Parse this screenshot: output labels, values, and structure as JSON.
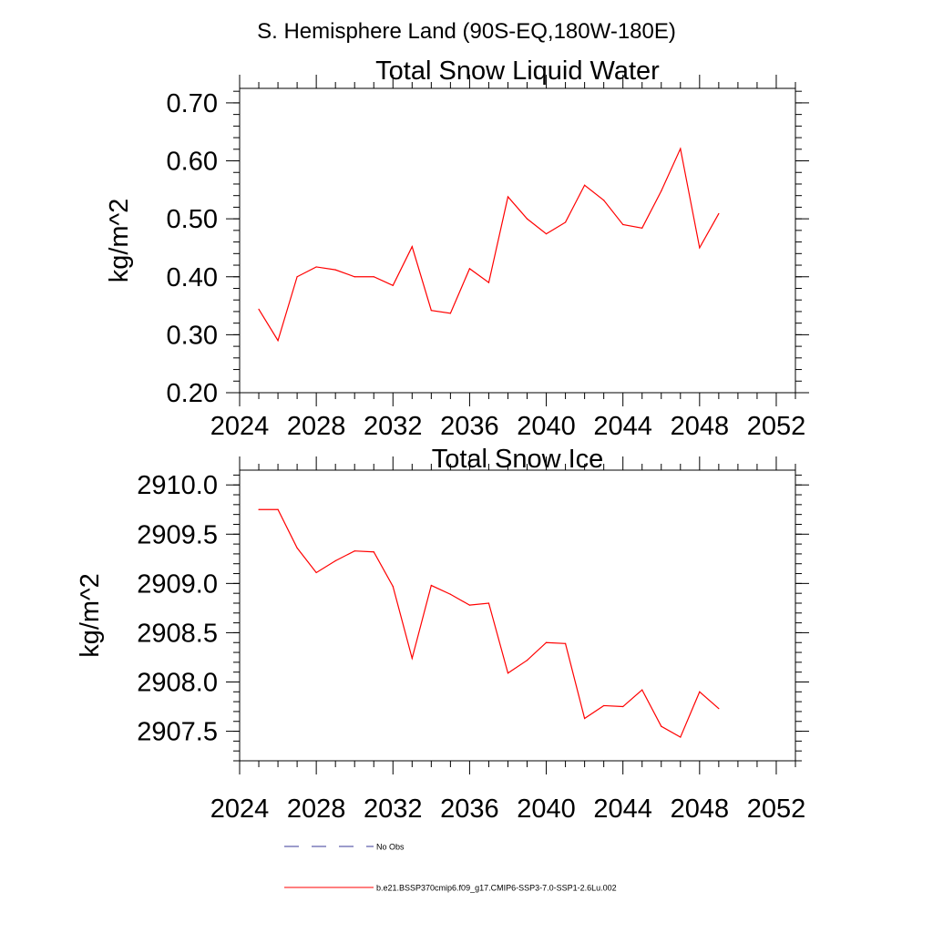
{
  "figure_title": "S. Hemisphere Land (90S-EQ,180W-180E)",
  "legend": {
    "placement": "bottom",
    "entries": [
      {
        "label": "No Obs",
        "color": "#3a3a9a",
        "style": "dashed"
      },
      {
        "label": "b.e21.BSSP370cmip6.f09_g17.CMIP6-SSP3-7.0-SSP1-2.6Lu.002",
        "color": "#ff0000",
        "style": "solid"
      }
    ]
  },
  "chart_data": [
    {
      "type": "line",
      "title": "Total Snow Liquid Water",
      "xlabel": "",
      "ylabel": "kg/m^2",
      "xlim": [
        2024,
        2053
      ],
      "ylim": [
        0.2,
        0.725
      ],
      "xticks": [
        "2024",
        "2028",
        "2032",
        "2036",
        "2040",
        "2044",
        "2048",
        "2052"
      ],
      "yticks": [
        "0.20",
        "0.30",
        "0.40",
        "0.50",
        "0.60",
        "0.70"
      ],
      "grid": false,
      "series": [
        {
          "name": "b.e21.BSSP370cmip6.f09_g17.CMIP6-SSP3-7.0-SSP1-2.6Lu.002",
          "color": "#ff0000",
          "x": [
            2025,
            2026,
            2027,
            2028,
            2029,
            2030,
            2031,
            2032,
            2033,
            2034,
            2035,
            2036,
            2037,
            2038,
            2039,
            2040,
            2041,
            2042,
            2043,
            2044,
            2045,
            2046,
            2047,
            2048,
            2049
          ],
          "values": [
            0.344,
            0.29,
            0.4,
            0.417,
            0.412,
            0.4,
            0.4,
            0.385,
            0.452,
            0.342,
            0.337,
            0.414,
            0.39,
            0.538,
            0.5,
            0.474,
            0.494,
            0.558,
            0.532,
            0.49,
            0.484,
            0.548,
            0.621,
            0.45,
            0.509
          ]
        }
      ]
    },
    {
      "type": "line",
      "title": "Total Snow Ice",
      "xlabel": "",
      "ylabel": "kg/m^2",
      "xlim": [
        2024,
        2053
      ],
      "ylim": [
        2907.2,
        2910.15
      ],
      "xticks": [
        "2024",
        "2028",
        "2032",
        "2036",
        "2040",
        "2044",
        "2048",
        "2052"
      ],
      "yticks": [
        "2907.5",
        "2908.0",
        "2908.5",
        "2909.0",
        "2909.5",
        "2910.0"
      ],
      "grid": false,
      "series": [
        {
          "name": "b.e21.BSSP370cmip6.f09_g17.CMIP6-SSP3-7.0-SSP1-2.6Lu.002",
          "color": "#ff0000",
          "x": [
            2025,
            2026,
            2027,
            2028,
            2029,
            2030,
            2031,
            2032,
            2033,
            2034,
            2035,
            2036,
            2037,
            2038,
            2039,
            2040,
            2041,
            2042,
            2043,
            2044,
            2045,
            2046,
            2047,
            2048,
            2049
          ],
          "values": [
            2909.75,
            2909.75,
            2909.36,
            2909.11,
            2909.23,
            2909.33,
            2909.32,
            2908.97,
            2908.24,
            2908.98,
            2908.89,
            2908.78,
            2908.8,
            2908.09,
            2908.22,
            2908.4,
            2908.39,
            2907.63,
            2907.76,
            2907.75,
            2907.92,
            2907.55,
            2907.44,
            2907.9,
            2907.73
          ]
        }
      ]
    }
  ]
}
